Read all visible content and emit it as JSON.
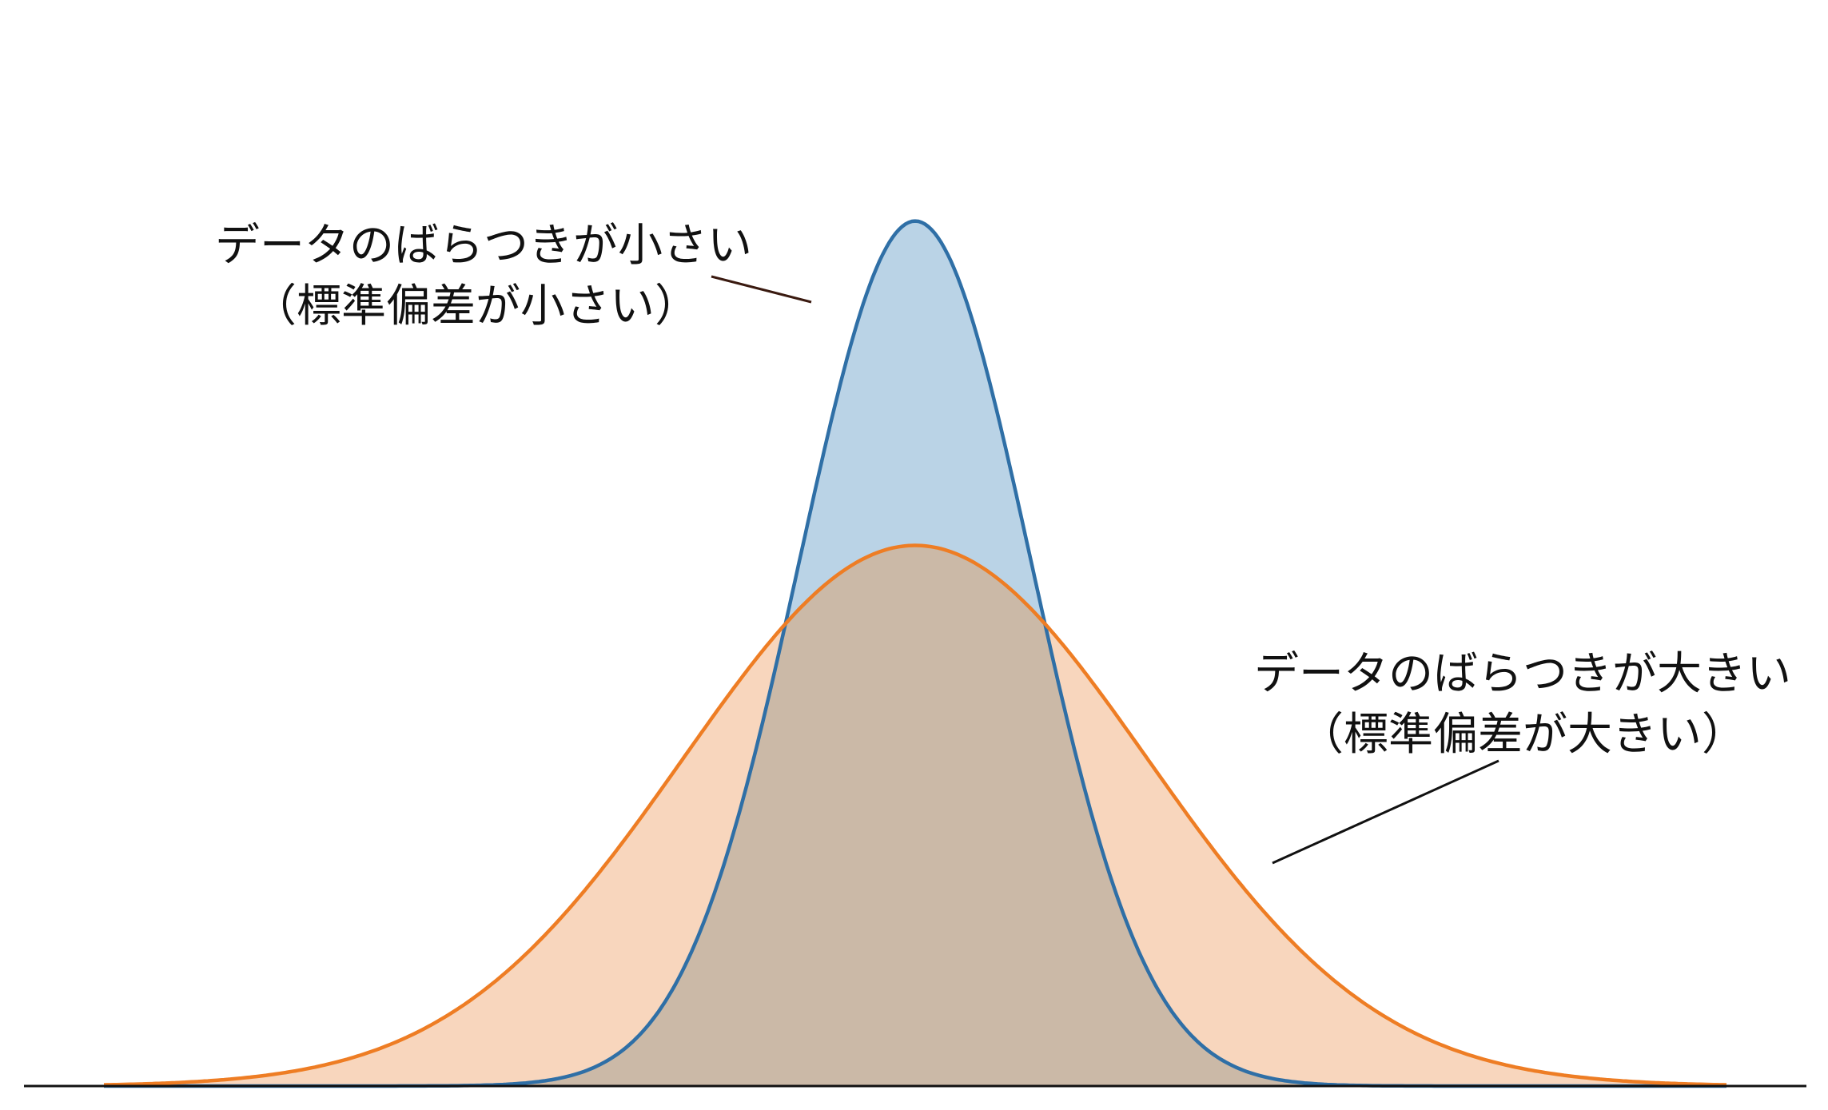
{
  "chart_data": {
    "type": "area",
    "title": "",
    "xlabel": "",
    "ylabel": "",
    "grid": false,
    "legend": "none",
    "xlim": [
      -3.5,
      3.5
    ],
    "ylim": [
      0,
      1.0
    ],
    "series": [
      {
        "distribution": "normal",
        "mean": 0,
        "sd": 0.5,
        "peak": 0.8,
        "line_color": "#2f6fa6",
        "fill_color": "#bad3e6"
      },
      {
        "distribution": "normal",
        "mean": 0,
        "sd": 1.0,
        "peak": 0.5,
        "line_color": "#ee7d24",
        "fill_color": "#f8d6bd"
      }
    ],
    "overlap_color": "#cbb9a7",
    "annotations": [
      {
        "line1": "データのばらつきが小さい",
        "line2": "（標準偏差が小さい）"
      },
      {
        "line1": "データのばらつきが大きい",
        "line2": "（標準偏差が大きい）"
      }
    ]
  }
}
